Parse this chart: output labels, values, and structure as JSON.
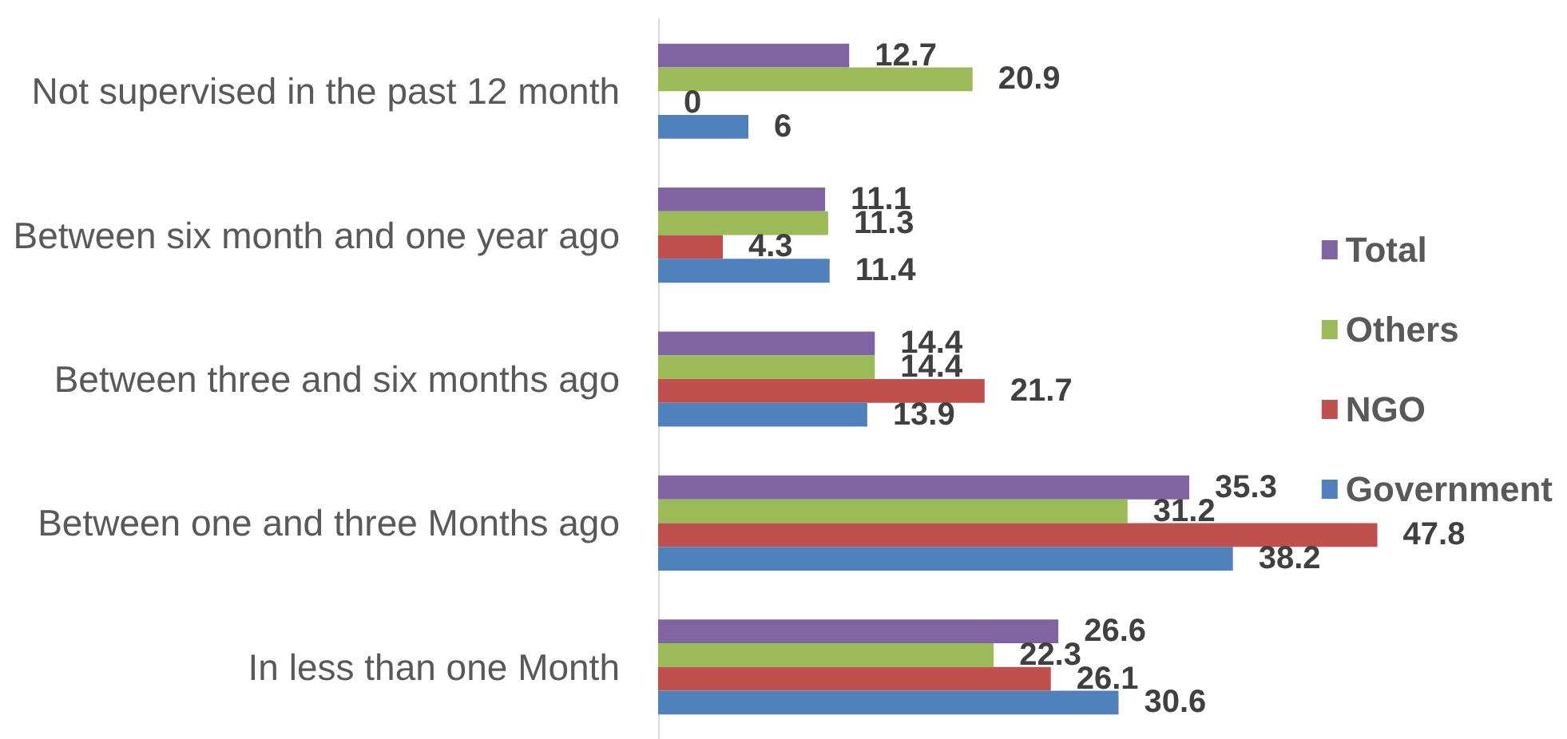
{
  "chart_data": {
    "type": "bar",
    "orientation": "horizontal",
    "categories": [
      "Not supervised in the past 12 month",
      "Between six month and one year ago",
      "Between three and six months ago",
      "Between one and three Months ago",
      "In less than one Month"
    ],
    "series": [
      {
        "name": "Total",
        "color": "#8064a2",
        "values": [
          12.7,
          11.1,
          14.4,
          35.3,
          26.6
        ]
      },
      {
        "name": "Others",
        "color": "#9bbb59",
        "values": [
          20.9,
          11.3,
          14.4,
          31.2,
          22.3
        ]
      },
      {
        "name": "NGO",
        "color": "#c0504d",
        "values": [
          0,
          4.3,
          21.7,
          47.8,
          26.1
        ]
      },
      {
        "name": "Government",
        "color": "#4f81bd",
        "values": [
          6,
          11.4,
          13.9,
          38.2,
          30.6
        ]
      }
    ],
    "data_labels": true,
    "legend": "right",
    "tick_labels": "y"
  }
}
